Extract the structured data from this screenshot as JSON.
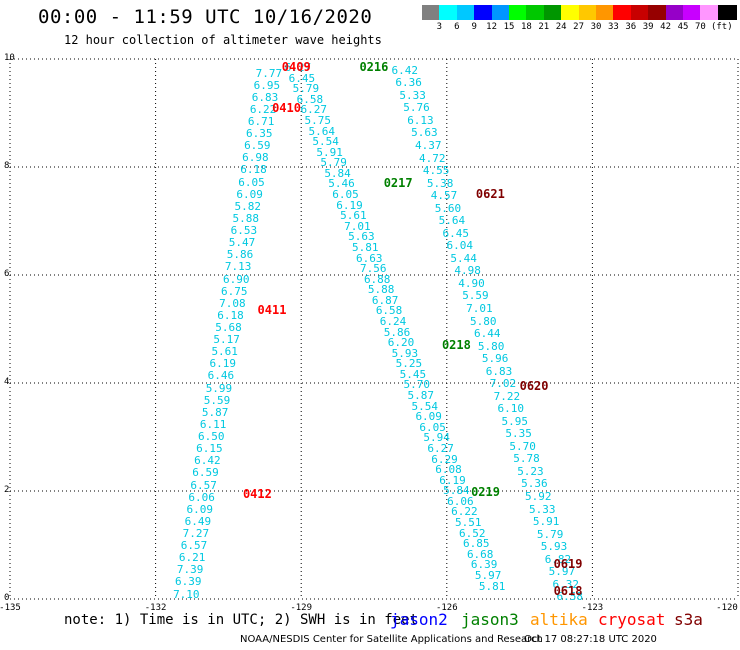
{
  "header": {
    "title": "00:00 - 11:59 UTC 10/16/2020",
    "subtitle": "12 hour collection of altimeter wave heights"
  },
  "legend": {
    "unit": "(ft)",
    "colors": [
      "#808080",
      "#00ffff",
      "#00c8ff",
      "#0000ff",
      "#0096ff",
      "#00ff00",
      "#00c800",
      "#009600",
      "#ffff00",
      "#ffc800",
      "#ff9600",
      "#ff0000",
      "#c80000",
      "#960000",
      "#9600c8",
      "#c800ff",
      "#ff96ff",
      "#000000"
    ],
    "labels": [
      "3",
      "6",
      "9",
      "12",
      "15",
      "18",
      "21",
      "24",
      "27",
      "30",
      "33",
      "36",
      "39",
      "42",
      "45",
      "70"
    ]
  },
  "chart_data": {
    "type": "scatter",
    "x_ticks": [
      "-135",
      "-132",
      "-129",
      "-126",
      "-123",
      "-120"
    ],
    "y_ticks": [
      "0",
      "2",
      "4",
      "6",
      "8",
      "10"
    ],
    "xlim": [
      -135,
      -120
    ],
    "ylim": [
      0,
      10
    ],
    "tracks": [
      {
        "x0": -131.3,
        "y0": 0.1,
        "x1": -129.6,
        "y1": 9.75,
        "values": [
          "7.10",
          "6.39",
          "7.39",
          "6.21",
          "6.57",
          "7.27",
          "6.49",
          "6.09",
          "6.06",
          "6.57",
          "6.59",
          "6.42",
          "6.15",
          "6.50",
          "6.11",
          "5.87",
          "5.59",
          "5.99",
          "6.46",
          "6.19",
          "5.61",
          "5.17",
          "5.68",
          "6.18",
          "7.08",
          "6.75",
          "6.90",
          "7.13",
          "5.86",
          "5.47",
          "6.53",
          "5.88",
          "5.82",
          "6.09",
          "6.05",
          "6.18",
          "6.98",
          "6.59",
          "6.35",
          "6.71",
          "6.22",
          "6.83",
          "6.95",
          "7.77"
        ]
      },
      {
        "x0": -129.0,
        "y0": 9.85,
        "x1": -125.0,
        "y1": 0.25,
        "values": [
          "6.27",
          "6.45",
          "5.79",
          "6.58",
          "6.27",
          "5.75",
          "5.64",
          "5.54",
          "5.91",
          "5.79",
          "5.84",
          "5.46",
          "6.05",
          "6.19",
          "5.61",
          "7.01",
          "5.63",
          "5.81",
          "6.63",
          "7.56",
          "6.88",
          "5.88",
          "6.87",
          "6.58",
          "6.24",
          "5.86",
          "6.20",
          "5.93",
          "5.25",
          "5.45",
          "5.70",
          "5.87",
          "5.54",
          "6.09",
          "6.05",
          "5.94",
          "6.27",
          "6.29",
          "6.08",
          "6.19",
          "5.84",
          "6.06",
          "6.22",
          "5.51",
          "6.52",
          "6.85",
          "6.68",
          "6.39",
          "5.97",
          "5.81"
        ]
      },
      {
        "x0": -126.8,
        "y0": 9.8,
        "x1": -123.4,
        "y1": 0.05,
        "values": [
          "6.42",
          "6.36",
          "5.33",
          "5.76",
          "6.13",
          "5.63",
          "4.37",
          "4.72",
          "4.55",
          "5.38",
          "4.57",
          "5.60",
          "5.64",
          "6.45",
          "6.04",
          "5.44",
          "4.98",
          "4.90",
          "5.59",
          "7.01",
          "5.80",
          "6.44",
          "5.80",
          "5.96",
          "6.83",
          "7.02",
          "7.22",
          "6.10",
          "5.95",
          "5.35",
          "5.70",
          "5.78",
          "5.23",
          "5.36",
          "5.92",
          "5.33",
          "5.91",
          "5.79",
          "5.93",
          "6.82",
          "5.97",
          "6.32",
          "6.58"
        ]
      }
    ],
    "pass_times": [
      {
        "label": "0409",
        "x": -129.4,
        "y": 9.85,
        "color": "#ff0000"
      },
      {
        "label": "0410",
        "x": -129.6,
        "y": 9.1,
        "color": "#ff0000"
      },
      {
        "label": "0411",
        "x": -129.9,
        "y": 5.35,
        "color": "#ff0000"
      },
      {
        "label": "0412",
        "x": -130.2,
        "y": 1.95,
        "color": "#ff0000"
      },
      {
        "label": "0216",
        "x": -127.8,
        "y": 9.85,
        "color": "#008000"
      },
      {
        "label": "0217",
        "x": -127.3,
        "y": 7.7,
        "color": "#008000"
      },
      {
        "label": "0218",
        "x": -126.1,
        "y": 4.7,
        "color": "#008000"
      },
      {
        "label": "0219",
        "x": -125.5,
        "y": 1.98,
        "color": "#008000"
      },
      {
        "label": "0621",
        "x": -125.4,
        "y": 7.5,
        "color": "#800000"
      },
      {
        "label": "0620",
        "x": -124.5,
        "y": 3.95,
        "color": "#800000"
      },
      {
        "label": "0619",
        "x": -123.8,
        "y": 0.65,
        "color": "#800000"
      },
      {
        "label": "0618",
        "x": -123.8,
        "y": 0.15,
        "color": "#800000"
      }
    ]
  },
  "footer": {
    "note": "note: 1) Time is in UTC; 2) SWH is in feet",
    "satellites": [
      {
        "name": "jason2",
        "color": "#0000ff"
      },
      {
        "name": "jason3",
        "color": "#008000"
      },
      {
        "name": "altika",
        "color": "#ff9600"
      },
      {
        "name": "cryosat",
        "color": "#ff0000"
      },
      {
        "name": "s3a",
        "color": "#800000"
      }
    ],
    "credit": "NOAA/NESDIS Center for Satellite Applications and Research",
    "timestamp": "Oct 17 08:27:18 UTC 2020"
  }
}
